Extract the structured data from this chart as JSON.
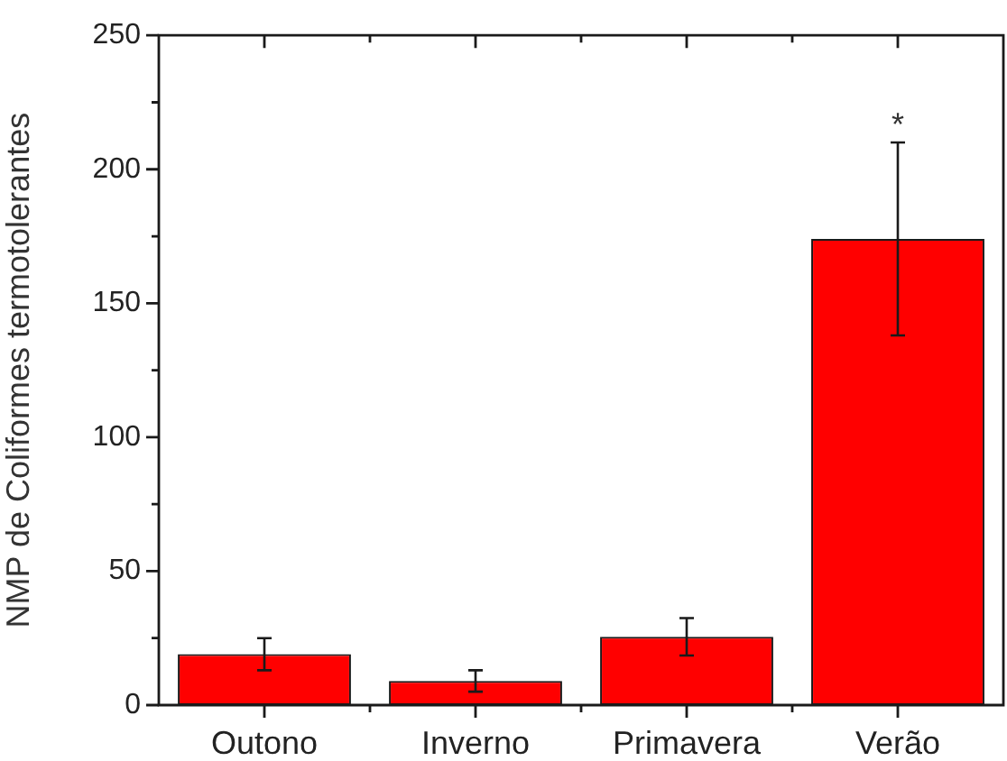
{
  "chart_data": {
    "type": "bar",
    "ylabel": "NMP de Coliformes termotolerantes",
    "categories": [
      "Outono",
      "Inverno",
      "Primavera",
      "Verão"
    ],
    "values": [
      19,
      9,
      25.5,
      174
    ],
    "errors": [
      6,
      4,
      7,
      36
    ],
    "color": "#ff0000",
    "ylim": [
      0,
      250
    ],
    "yticks": [
      0,
      {
        "value": 25,
        "label": null
      },
      50,
      {
        "value": 75,
        "label": null
      },
      100,
      {
        "value": 125,
        "label": null
      },
      150,
      {
        "value": 175,
        "label": null
      },
      200,
      {
        "value": 225,
        "label": null
      },
      250
    ],
    "annotations": [
      "*"
    ],
    "grid": false,
    "legend": false
  }
}
